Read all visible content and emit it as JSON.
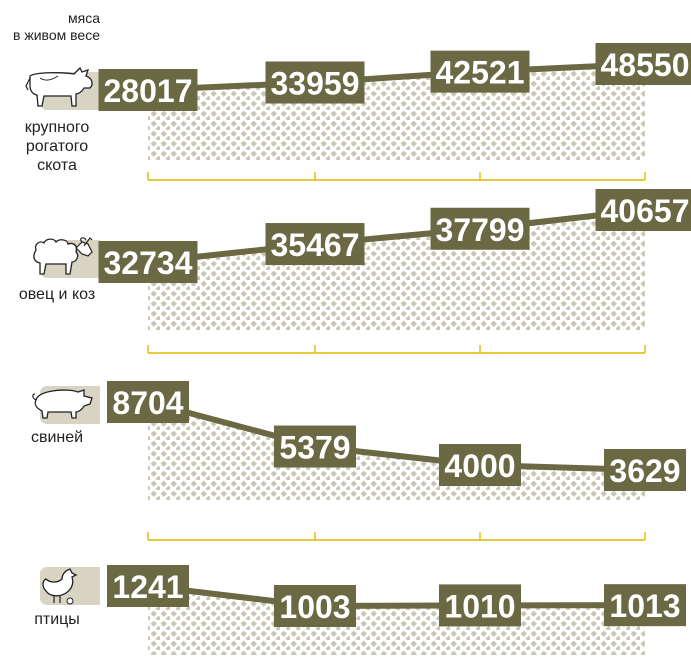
{
  "header": {
    "line1": "мяса",
    "line2": "в живом весе"
  },
  "colors": {
    "line": "#6b6844",
    "dots": "#c9c6b4",
    "bracket": "#e0b800",
    "badge_bg": "#d7d4c4",
    "value_text": "#ffffff"
  },
  "chart_data": [
    {
      "type": "line",
      "label": "крупного рогатого скота",
      "label_lines": [
        "крупного",
        "рогатого",
        "скота"
      ],
      "icon": "cow-icon",
      "values": [
        28017,
        33959,
        42521,
        48550
      ]
    },
    {
      "type": "line",
      "label": "овец и коз",
      "label_lines": [
        "овец и коз"
      ],
      "icon": "sheep-icon",
      "values": [
        32734,
        35467,
        37799,
        40657
      ]
    },
    {
      "type": "line",
      "label": "свиней",
      "label_lines": [
        "свиней"
      ],
      "icon": "pig-icon",
      "values": [
        8704,
        5379,
        4000,
        3629
      ]
    },
    {
      "type": "line",
      "label": "птицы",
      "label_lines": [
        "птицы"
      ],
      "icon": "chicken-icon",
      "values": [
        1241,
        1003,
        1010,
        1013
      ]
    }
  ]
}
